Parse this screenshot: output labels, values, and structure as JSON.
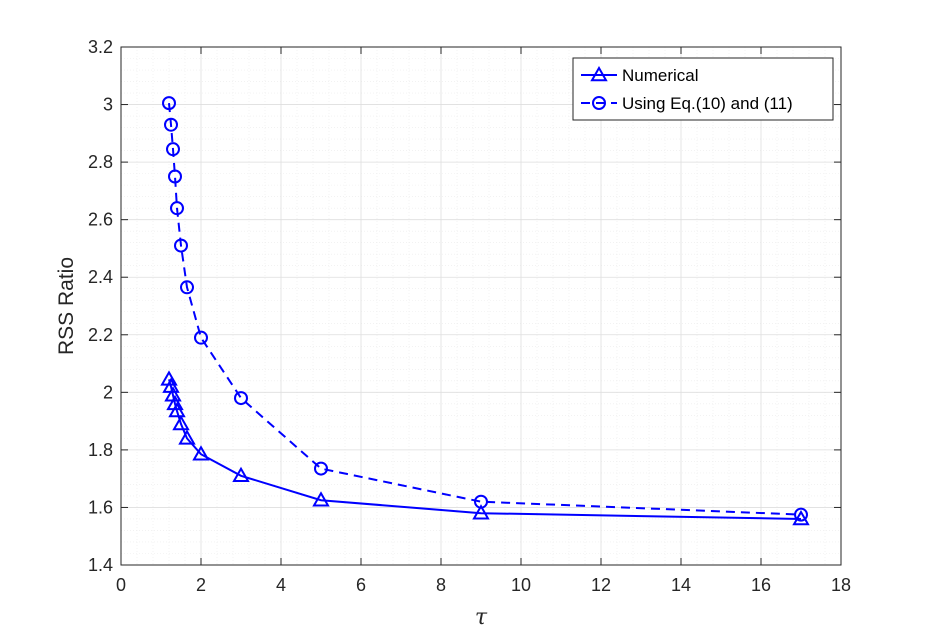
{
  "chart_data": {
    "type": "line",
    "title": "",
    "xlabel": "τ",
    "ylabel": "RSS Ratio",
    "xlim": [
      0,
      18
    ],
    "ylim": [
      1.4,
      3.2
    ],
    "xticks": [
      0,
      2,
      4,
      6,
      8,
      10,
      12,
      14,
      16,
      18
    ],
    "yticks": [
      1.4,
      1.6,
      1.8,
      2,
      2.2,
      2.4,
      2.6,
      2.8,
      3,
      3.2
    ],
    "xtick_labels": [
      "0",
      "2",
      "4",
      "6",
      "8",
      "10",
      "12",
      "14",
      "16",
      "18"
    ],
    "ytick_labels": [
      "1.4",
      "1.6",
      "1.8",
      "2",
      "2.2",
      "2.4",
      "2.6",
      "2.8",
      "3",
      "3.2"
    ],
    "grid": true,
    "minor_grid": true,
    "legend_position": "top-right",
    "series": [
      {
        "name": "Numerical",
        "color": "#0000ff",
        "line_style": "solid",
        "marker": "triangle",
        "x": [
          1.2,
          1.25,
          1.3,
          1.35,
          1.4,
          1.5,
          1.65,
          2,
          3,
          5,
          9,
          17
        ],
        "y": [
          2.045,
          2.02,
          1.99,
          1.96,
          1.935,
          1.89,
          1.84,
          1.785,
          1.71,
          1.625,
          1.58,
          1.56
        ]
      },
      {
        "name": "Using Eq.(10) and (11)",
        "color": "#0000ff",
        "line_style": "dashed",
        "marker": "circle",
        "x": [
          1.2,
          1.25,
          1.3,
          1.35,
          1.4,
          1.5,
          1.65,
          2,
          3,
          5,
          9,
          17
        ],
        "y": [
          3.005,
          2.93,
          2.845,
          2.75,
          2.64,
          2.51,
          2.365,
          2.19,
          1.98,
          1.735,
          1.62,
          1.575
        ]
      }
    ]
  }
}
